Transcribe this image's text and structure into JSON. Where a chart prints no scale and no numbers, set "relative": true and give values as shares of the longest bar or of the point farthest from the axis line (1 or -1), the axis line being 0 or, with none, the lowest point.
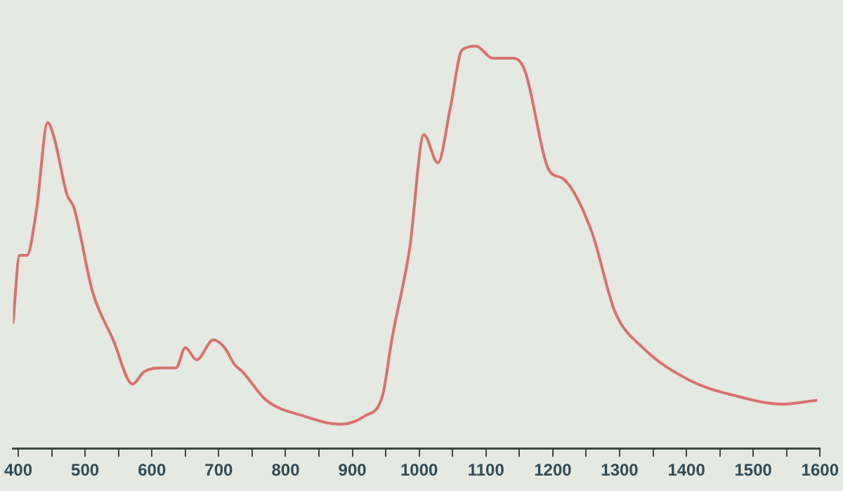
{
  "chart_data": {
    "type": "line",
    "relative": true,
    "tick_labels": "x",
    "grid": false,
    "marker": "none",
    "line_style": "solid",
    "xlim": [
      392,
      1600
    ],
    "xticks": [
      400,
      {
        "value": 450,
        "label": null
      },
      500,
      {
        "value": 550,
        "label": null
      },
      600,
      {
        "value": 650,
        "label": null
      },
      700,
      {
        "value": 750,
        "label": null
      },
      800,
      {
        "value": 850,
        "label": null
      },
      900,
      {
        "value": 950,
        "label": null
      },
      1000,
      {
        "value": 1050,
        "label": null
      },
      1100,
      {
        "value": 1150,
        "label": null
      },
      1200,
      {
        "value": 1250,
        "label": null
      },
      1300,
      {
        "value": 1350,
        "label": null
      },
      1400,
      {
        "value": 1450,
        "label": null
      },
      1500,
      {
        "value": 1550,
        "label": null
      },
      1600
    ],
    "series": [
      {
        "color": "#d9716f",
        "x": [
          392,
          402,
          413,
          427,
          444,
          454,
          473,
          483,
          511,
          542,
          571,
          588,
          615,
          636,
          650,
          667,
          692,
          709,
          723,
          736,
          771,
          828,
          882,
          918,
          945,
          959,
          986,
          1007,
          1028,
          1047,
          1064,
          1085,
          1110,
          1141,
          1158,
          1195,
          1216,
          1258,
          1293,
          1335,
          1404,
          1475,
          1544,
          1596
        ],
        "values": [
          0.31,
          0.48,
          0.48,
          0.59,
          0.81,
          0.77,
          0.63,
          0.6,
          0.39,
          0.27,
          0.16,
          0.19,
          0.2,
          0.2,
          0.25,
          0.22,
          0.27,
          0.25,
          0.21,
          0.19,
          0.12,
          0.08,
          0.06,
          0.08,
          0.13,
          0.27,
          0.5,
          0.78,
          0.71,
          0.85,
          0.99,
          1,
          0.97,
          0.97,
          0.94,
          0.69,
          0.67,
          0.54,
          0.34,
          0.25,
          0.17,
          0.13,
          0.11,
          0.12
        ]
      }
    ]
  }
}
